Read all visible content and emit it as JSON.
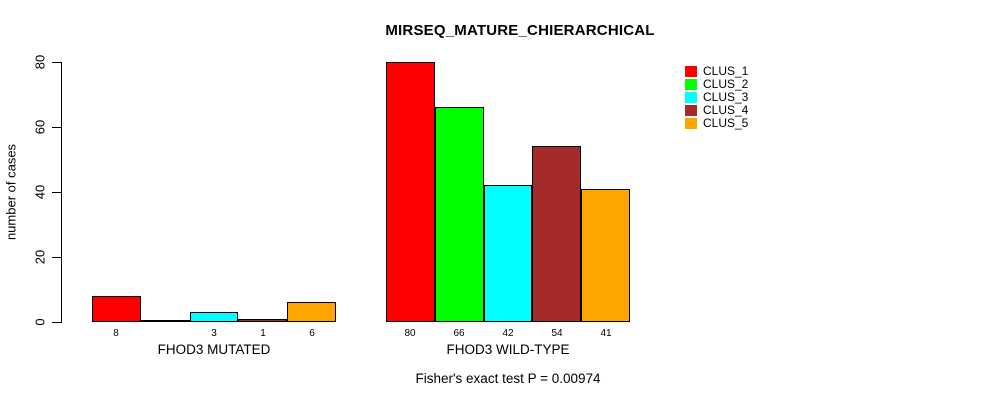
{
  "chart_data": {
    "type": "bar",
    "title": "MIRSEQ_MATURE_CHIERARCHICAL",
    "ylabel": "number of cases",
    "xlabel": "",
    "ylim": [
      0,
      80
    ],
    "yticks": [
      0,
      20,
      40,
      60,
      80
    ],
    "grid": false,
    "legend_position": "top-right",
    "clusters": [
      "CLUS_1",
      "CLUS_2",
      "CLUS_3",
      "CLUS_4",
      "CLUS_5"
    ],
    "colors": [
      "#FF0000",
      "#00FF00",
      "#00FFFF",
      "#A52A2A",
      "#FFA500"
    ],
    "groups": [
      {
        "label": "FHOD3 MUTATED",
        "values": [
          8,
          0,
          3,
          1,
          6
        ],
        "bar_labels": [
          "8",
          "",
          "3",
          "1",
          "6"
        ]
      },
      {
        "label": "FHOD3 WILD-TYPE",
        "values": [
          80,
          66,
          42,
          54,
          41
        ],
        "bar_labels": [
          "80",
          "66",
          "42",
          "54",
          "41"
        ]
      }
    ],
    "annotation": "Fisher's exact test P = 0.00974"
  }
}
